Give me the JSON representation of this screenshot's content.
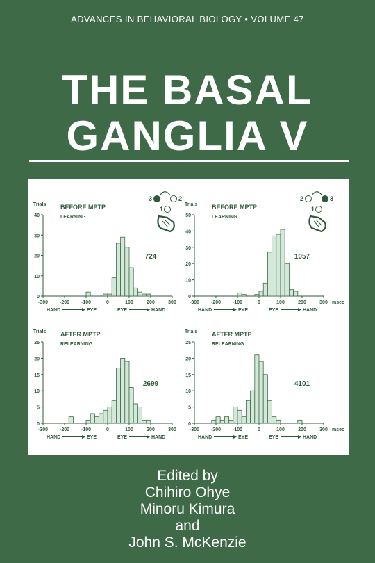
{
  "series": "ADVANCES IN BEHAVIORAL BIOLOGY • VOLUME 47",
  "title_line1": "THE BASAL",
  "title_line2": "GANGLIA V",
  "colors": {
    "background": "#3f6a48",
    "bar_fill": "#d3e8d8",
    "bar_stroke": "#3f6a48",
    "figure_ink": "#2f5a3a"
  },
  "chart_data": [
    {
      "type": "bar",
      "title": "BEFORE MPTP",
      "subtitle": "LEARNING",
      "ylabel": "Trials",
      "count_label": "724",
      "xlim": [
        -300,
        300
      ],
      "ylim": [
        0,
        40
      ],
      "xticks": [
        "-300",
        "-200",
        "-100",
        "0",
        "100",
        "200",
        "300"
      ],
      "yticks": [
        "0",
        "10",
        "20",
        "30",
        "40"
      ],
      "x_unit": "",
      "direction_left": "HAND",
      "direction_left_to": "EYE",
      "direction_right": "EYE",
      "direction_right_to": "HAND",
      "target_left": "3",
      "target_right": "2",
      "target_bottom": "1",
      "bin_width": 20,
      "bins": [
        [
          -100,
          2
        ],
        [
          -20,
          1
        ],
        [
          0,
          1
        ],
        [
          20,
          9
        ],
        [
          40,
          26
        ],
        [
          60,
          29
        ],
        [
          80,
          24
        ],
        [
          100,
          14
        ],
        [
          120,
          4
        ],
        [
          140,
          2
        ],
        [
          160,
          1
        ],
        [
          180,
          1
        ]
      ]
    },
    {
      "type": "bar",
      "title": "BEFORE MPTP",
      "subtitle": "LEARNING",
      "ylabel": "Trials",
      "count_label": "1057",
      "xlim": [
        -300,
        300
      ],
      "ylim": [
        0,
        50
      ],
      "xticks": [
        "-300",
        "-200",
        "-100",
        "0",
        "100",
        "200",
        "300"
      ],
      "yticks": [
        "0",
        "10",
        "20",
        "30",
        "40",
        "50"
      ],
      "x_unit": "msec",
      "direction_left": "HAND",
      "direction_left_to": "EYE",
      "direction_right": "EYE",
      "direction_right_to": "HAND",
      "target_left": "2",
      "target_right": "3",
      "target_bottom": "1",
      "bin_width": 20,
      "bins": [
        [
          -100,
          2
        ],
        [
          -80,
          1
        ],
        [
          -20,
          1
        ],
        [
          0,
          3
        ],
        [
          20,
          8
        ],
        [
          40,
          27
        ],
        [
          60,
          37
        ],
        [
          80,
          38
        ],
        [
          100,
          41
        ],
        [
          120,
          20
        ],
        [
          140,
          4
        ],
        [
          160,
          3
        ]
      ]
    },
    {
      "type": "bar",
      "title": "AFTER MPTP",
      "subtitle": "RELEARNING",
      "ylabel": "Trials",
      "count_label": "2699",
      "xlim": [
        -300,
        300
      ],
      "ylim": [
        0,
        25
      ],
      "xticks": [
        "-300",
        "-200",
        "-100",
        "0",
        "100",
        "200",
        "300"
      ],
      "yticks": [
        "0",
        "5",
        "10",
        "15",
        "20",
        "25"
      ],
      "x_unit": "",
      "direction_left": "HAND",
      "direction_left_to": "EYE",
      "direction_right": "EYE",
      "direction_right_to": "HAND",
      "target_left": "",
      "target_right": "",
      "target_bottom": "",
      "bin_width": 20,
      "bins": [
        [
          -180,
          2
        ],
        [
          -100,
          1
        ],
        [
          -80,
          3
        ],
        [
          -60,
          2
        ],
        [
          -40,
          3
        ],
        [
          -20,
          4
        ],
        [
          0,
          5
        ],
        [
          20,
          7
        ],
        [
          40,
          17
        ],
        [
          60,
          20
        ],
        [
          80,
          19
        ],
        [
          100,
          11
        ],
        [
          120,
          6
        ],
        [
          140,
          5
        ],
        [
          160,
          1
        ],
        [
          180,
          1
        ]
      ]
    },
    {
      "type": "bar",
      "title": "AFTER MPTP",
      "subtitle": "RELEARNING",
      "ylabel": "Trials",
      "count_label": "4101",
      "xlim": [
        -300,
        300
      ],
      "ylim": [
        0,
        25
      ],
      "xticks": [
        "-300",
        "-200",
        "-100",
        "0",
        "100",
        "200",
        "300"
      ],
      "yticks": [
        "0",
        "5",
        "10",
        "15",
        "20",
        "25"
      ],
      "x_unit": "msec",
      "direction_left": "HAND",
      "direction_left_to": "EYE",
      "direction_right": "EYE",
      "direction_right_to": "HAND",
      "target_left": "",
      "target_right": "",
      "target_bottom": "",
      "bin_width": 20,
      "bins": [
        [
          -220,
          1
        ],
        [
          -200,
          2
        ],
        [
          -180,
          1
        ],
        [
          -160,
          2
        ],
        [
          -140,
          1
        ],
        [
          -120,
          5
        ],
        [
          -100,
          4
        ],
        [
          -80,
          2
        ],
        [
          -60,
          7
        ],
        [
          -40,
          10
        ],
        [
          -20,
          21
        ],
        [
          0,
          19
        ],
        [
          20,
          15
        ],
        [
          40,
          7
        ],
        [
          60,
          2
        ],
        [
          80,
          1
        ],
        [
          180,
          1
        ]
      ]
    }
  ],
  "editors": {
    "line1": "Edited by",
    "line2": "Chihiro Ohye",
    "line3": "Minoru Kimura",
    "line4": "and",
    "line5": "John S. McKenzie"
  }
}
